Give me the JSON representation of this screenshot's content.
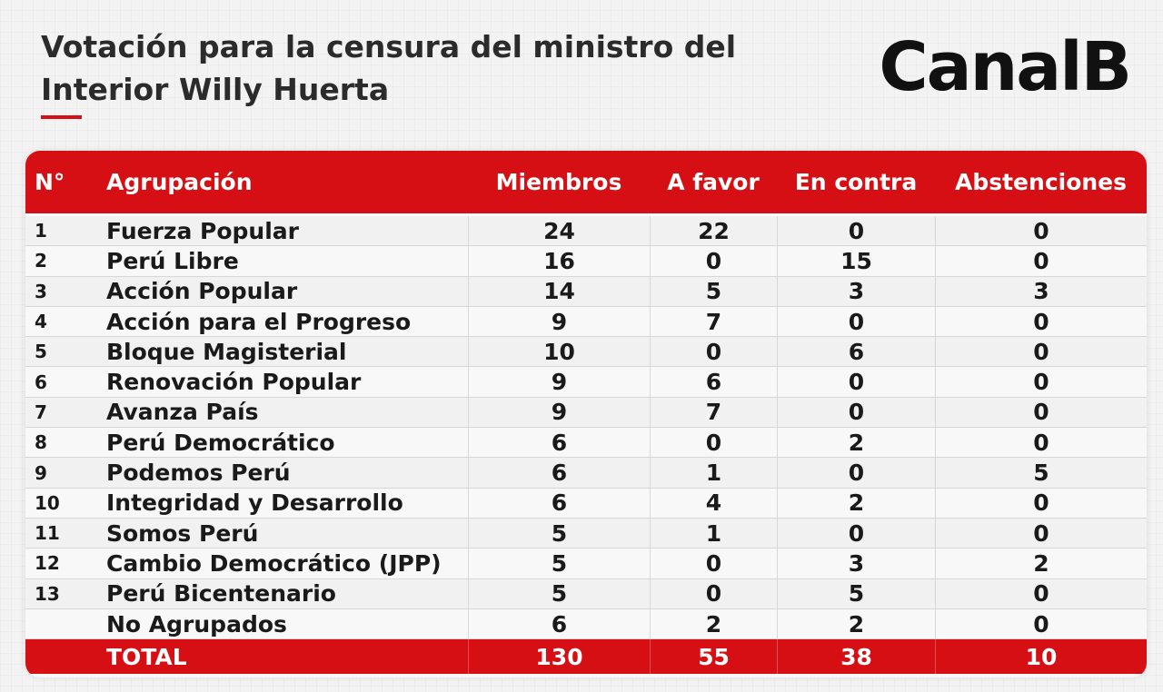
{
  "title": "Votación para la censura del ministro del Interior Willy Huerta",
  "logo": "CanalB",
  "colors": {
    "accent": "#d50f14",
    "text": "#1a1a1a",
    "background": "#f3f3f3"
  },
  "table": {
    "headers": {
      "n": "N°",
      "group": "Agrupación",
      "members": "Miembros",
      "for": "A favor",
      "against": "En contra",
      "abstentions": "Abstenciones"
    },
    "rows": [
      {
        "n": "1",
        "group": "Fuerza Popular",
        "members": "24",
        "for": "22",
        "against": "0",
        "abstentions": "0"
      },
      {
        "n": "2",
        "group": "Perú Libre",
        "members": "16",
        "for": "0",
        "against": "15",
        "abstentions": "0"
      },
      {
        "n": "3",
        "group": "Acción Popular",
        "members": "14",
        "for": "5",
        "against": "3",
        "abstentions": "3"
      },
      {
        "n": "4",
        "group": "Acción para el Progreso",
        "members": "9",
        "for": "7",
        "against": "0",
        "abstentions": "0"
      },
      {
        "n": "5",
        "group": "Bloque Magisterial",
        "members": "10",
        "for": "0",
        "against": "6",
        "abstentions": "0"
      },
      {
        "n": "6",
        "group": "Renovación Popular",
        "members": "9",
        "for": "6",
        "against": "0",
        "abstentions": "0"
      },
      {
        "n": "7",
        "group": "Avanza País",
        "members": "9",
        "for": "7",
        "against": "0",
        "abstentions": "0"
      },
      {
        "n": "8",
        "group": "Perú Democrático",
        "members": "6",
        "for": "0",
        "against": "2",
        "abstentions": "0"
      },
      {
        "n": "9",
        "group": "Podemos Perú",
        "members": "6",
        "for": "1",
        "against": "0",
        "abstentions": "5"
      },
      {
        "n": "10",
        "group": "Integridad y Desarrollo",
        "members": "6",
        "for": "4",
        "against": "2",
        "abstentions": "0"
      },
      {
        "n": "11",
        "group": "Somos Perú",
        "members": "5",
        "for": "1",
        "against": "0",
        "abstentions": "0"
      },
      {
        "n": "12",
        "group": "Cambio Democrático (JPP)",
        "members": "5",
        "for": "0",
        "against": "3",
        "abstentions": "2"
      },
      {
        "n": "13",
        "group": "Perú Bicentenario",
        "members": "5",
        "for": "0",
        "against": "5",
        "abstentions": "0"
      },
      {
        "n": "",
        "group": "No Agrupados",
        "members": "6",
        "for": "2",
        "against": "2",
        "abstentions": "0"
      }
    ],
    "total": {
      "label": "TOTAL",
      "members": "130",
      "for": "55",
      "against": "38",
      "abstentions": "10"
    }
  }
}
